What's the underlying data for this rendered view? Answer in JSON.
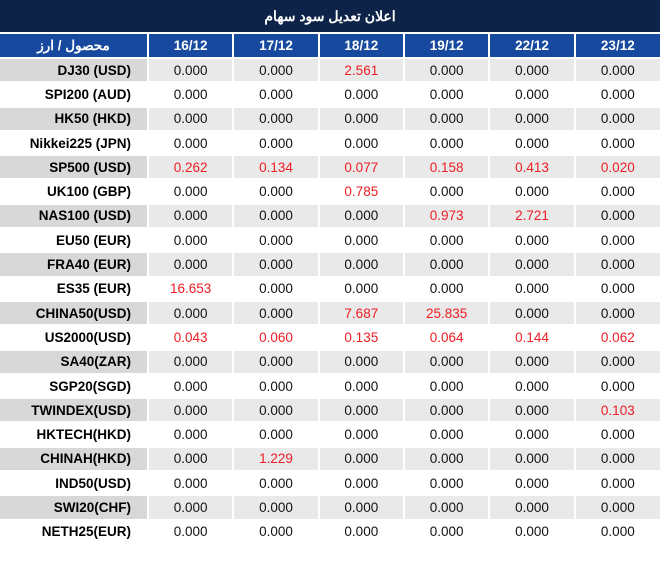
{
  "title": "اعلان تعديل سود سهام",
  "colors": {
    "title_bar_navy": "#0D2348",
    "header_blue": "#174A9E",
    "negative_red": "#EE1D23",
    "odd_row_label_gray": "#D8D8D8",
    "odd_row_value_gray": "#E9E9E9",
    "text_dark": "#111111"
  },
  "chart_data": {
    "type": "table",
    "title": "اعلان تعديل سود سهام",
    "product_currency_header": "محصول / ارز",
    "date_columns": [
      "16/12",
      "17/12",
      "18/12",
      "19/12",
      "22/12",
      "23/12"
    ],
    "rows": [
      {
        "label": "DJ30 (USD)",
        "values": [
          "0.000",
          "0.000",
          "2.561",
          "0.000",
          "0.000",
          "0.000"
        ],
        "red": [
          2
        ]
      },
      {
        "label": "SPI200 (AUD)",
        "values": [
          "0.000",
          "0.000",
          "0.000",
          "0.000",
          "0.000",
          "0.000"
        ],
        "red": []
      },
      {
        "label": "HK50 (HKD)",
        "values": [
          "0.000",
          "0.000",
          "0.000",
          "0.000",
          "0.000",
          "0.000"
        ],
        "red": []
      },
      {
        "label": "Nikkei225 (JPN)",
        "values": [
          "0.000",
          "0.000",
          "0.000",
          "0.000",
          "0.000",
          "0.000"
        ],
        "red": []
      },
      {
        "label": "SP500 (USD)",
        "values": [
          "0.262",
          "0.134",
          "0.077",
          "0.158",
          "0.413",
          "0.020"
        ],
        "red": [
          0,
          1,
          2,
          3,
          4,
          5
        ]
      },
      {
        "label": "UK100 (GBP)",
        "values": [
          "0.000",
          "0.000",
          "0.785",
          "0.000",
          "0.000",
          "0.000"
        ],
        "red": [
          2
        ]
      },
      {
        "label": "NAS100 (USD)",
        "values": [
          "0.000",
          "0.000",
          "0.000",
          "0.973",
          "2.721",
          "0.000"
        ],
        "red": [
          3,
          4
        ]
      },
      {
        "label": "EU50 (EUR)",
        "values": [
          "0.000",
          "0.000",
          "0.000",
          "0.000",
          "0.000",
          "0.000"
        ],
        "red": []
      },
      {
        "label": "FRA40 (EUR)",
        "values": [
          "0.000",
          "0.000",
          "0.000",
          "0.000",
          "0.000",
          "0.000"
        ],
        "red": []
      },
      {
        "label": "ES35 (EUR)",
        "values": [
          "16.653",
          "0.000",
          "0.000",
          "0.000",
          "0.000",
          "0.000"
        ],
        "red": [
          0
        ]
      },
      {
        "label": "CHINA50(USD)",
        "values": [
          "0.000",
          "0.000",
          "7.687",
          "25.835",
          "0.000",
          "0.000"
        ],
        "red": [
          2,
          3
        ]
      },
      {
        "label": "US2000(USD)",
        "values": [
          "0.043",
          "0.060",
          "0.135",
          "0.064",
          "0.144",
          "0.062"
        ],
        "red": [
          0,
          1,
          2,
          3,
          4,
          5
        ]
      },
      {
        "label": "SA40(ZAR)",
        "values": [
          "0.000",
          "0.000",
          "0.000",
          "0.000",
          "0.000",
          "0.000"
        ],
        "red": []
      },
      {
        "label": "SGP20(SGD)",
        "values": [
          "0.000",
          "0.000",
          "0.000",
          "0.000",
          "0.000",
          "0.000"
        ],
        "red": []
      },
      {
        "label": "TWINDEX(USD)",
        "values": [
          "0.000",
          "0.000",
          "0.000",
          "0.000",
          "0.000",
          "0.103"
        ],
        "red": [
          5
        ]
      },
      {
        "label": "HKTECH(HKD)",
        "values": [
          "0.000",
          "0.000",
          "0.000",
          "0.000",
          "0.000",
          "0.000"
        ],
        "red": []
      },
      {
        "label": "CHINAH(HKD)",
        "values": [
          "0.000",
          "1.229",
          "0.000",
          "0.000",
          "0.000",
          "0.000"
        ],
        "red": [
          1
        ]
      },
      {
        "label": "IND50(USD)",
        "values": [
          "0.000",
          "0.000",
          "0.000",
          "0.000",
          "0.000",
          "0.000"
        ],
        "red": []
      },
      {
        "label": "SWI20(CHF)",
        "values": [
          "0.000",
          "0.000",
          "0.000",
          "0.000",
          "0.000",
          "0.000"
        ],
        "red": []
      },
      {
        "label": "NETH25(EUR)",
        "values": [
          "0.000",
          "0.000",
          "0.000",
          "0.000",
          "0.000",
          "0.000"
        ],
        "red": []
      }
    ]
  }
}
